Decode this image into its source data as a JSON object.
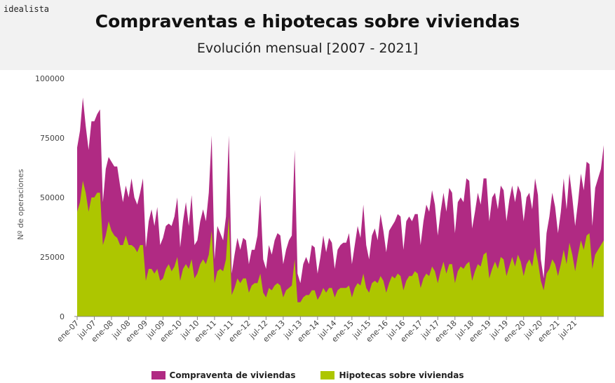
{
  "header": {
    "brand": "idealista",
    "title": "Compraventas e hipotecas sobre viviendas",
    "subtitle": "Evolución mensual [2007 - 2021]"
  },
  "chart_data": {
    "type": "area",
    "stacked": false,
    "ylabel": "Nº de operaciones",
    "ylim": [
      0,
      100000
    ],
    "yticks": [
      0,
      25000,
      50000,
      75000,
      100000
    ],
    "ytick_labels": [
      "0",
      "25000",
      "50000",
      "75000",
      "100000"
    ],
    "x_start": "2007-01",
    "x_end": "2021-11",
    "xtick_labels": [
      "ene-07",
      "jul-07",
      "ene-08",
      "jul-08",
      "ene-09",
      "jul-09",
      "ene-10",
      "jul-10",
      "ene-11",
      "jul-11",
      "ene-12",
      "jul-12",
      "ene-13",
      "jul-13",
      "ene-14",
      "jul-14",
      "ene-15",
      "jul-15",
      "ene-16",
      "jul-16",
      "ene-17",
      "jul-17",
      "ene-18",
      "jul-18",
      "ene-19",
      "jul-19",
      "ene-20",
      "jul-20",
      "ene-21",
      "jul-21"
    ],
    "grid": false,
    "legend_position": "bottom",
    "series": [
      {
        "name": "Compraventa de viviendas",
        "color": "#b02a83",
        "values": [
          71000,
          78000,
          92000,
          80000,
          70000,
          82000,
          82000,
          85000,
          87000,
          48000,
          62000,
          67000,
          65000,
          63000,
          63000,
          55000,
          48000,
          55000,
          50000,
          58000,
          50000,
          47000,
          52000,
          58000,
          29000,
          40000,
          45000,
          38000,
          46000,
          30000,
          33000,
          38000,
          39000,
          38000,
          42000,
          50000,
          29000,
          40000,
          48000,
          38000,
          51000,
          30000,
          32000,
          40000,
          45000,
          40000,
          52000,
          76000,
          24000,
          38000,
          35000,
          32000,
          42000,
          76000,
          18000,
          26000,
          33000,
          28000,
          33000,
          32000,
          22000,
          28000,
          28000,
          34000,
          51000,
          24000,
          20000,
          30000,
          26000,
          32000,
          35000,
          34000,
          22000,
          28000,
          32000,
          34000,
          70000,
          18000,
          14000,
          22000,
          25000,
          22000,
          30000,
          29000,
          18000,
          25000,
          34000,
          27000,
          33000,
          31000,
          20000,
          28000,
          30000,
          31000,
          31000,
          35000,
          22000,
          30000,
          38000,
          33000,
          47000,
          30000,
          24000,
          34000,
          37000,
          32000,
          43000,
          36000,
          27000,
          36000,
          38000,
          40000,
          43000,
          42000,
          28000,
          40000,
          42000,
          40000,
          43000,
          43000,
          30000,
          40000,
          47000,
          44000,
          53000,
          47000,
          34000,
          44000,
          52000,
          44000,
          54000,
          52000,
          35000,
          48000,
          50000,
          48000,
          58000,
          57000,
          37000,
          44000,
          52000,
          47000,
          58000,
          58000,
          40000,
          50000,
          52000,
          45000,
          55000,
          53000,
          40000,
          49000,
          55000,
          48000,
          55000,
          52000,
          40000,
          50000,
          52000,
          45000,
          58000,
          51000,
          24000,
          16000,
          35000,
          42000,
          52000,
          46000,
          35000,
          44000,
          58000,
          45000,
          60000,
          50000,
          38000,
          48000,
          60000,
          53000,
          65000,
          64000,
          38000,
          54000,
          58000,
          62000,
          72000
        ]
      },
      {
        "name": "Hipotecas sobre viviendas",
        "color": "#adc600",
        "values": [
          44000,
          48000,
          57000,
          52000,
          44000,
          50000,
          50000,
          52000,
          52000,
          30000,
          34000,
          40000,
          36000,
          34000,
          33000,
          30000,
          30000,
          34000,
          30000,
          30000,
          29000,
          27000,
          30000,
          30000,
          15000,
          20000,
          20000,
          18000,
          20000,
          15000,
          16000,
          20000,
          22000,
          19000,
          21000,
          25000,
          15000,
          20000,
          22000,
          20000,
          24000,
          16000,
          18000,
          22000,
          24000,
          22000,
          26000,
          36000,
          14000,
          19000,
          20000,
          19000,
          24000,
          42000,
          9000,
          12000,
          16000,
          14000,
          16000,
          16000,
          10000,
          13000,
          14000,
          14000,
          18000,
          10000,
          8000,
          12000,
          11000,
          13000,
          14000,
          13000,
          8000,
          11000,
          12000,
          13000,
          24000,
          6000,
          6000,
          8000,
          9000,
          9000,
          11000,
          11000,
          7000,
          9000,
          12000,
          10000,
          12000,
          12000,
          8000,
          11000,
          12000,
          12000,
          12000,
          13000,
          8000,
          12000,
          14000,
          13000,
          18000,
          12000,
          10000,
          14000,
          15000,
          14000,
          17000,
          15000,
          10000,
          14000,
          17000,
          16000,
          18000,
          17000,
          11000,
          15000,
          17000,
          17000,
          19000,
          18000,
          12000,
          16000,
          18000,
          17000,
          21000,
          19000,
          14000,
          19000,
          23000,
          18000,
          22000,
          22000,
          14000,
          19000,
          21000,
          20000,
          22000,
          23000,
          15000,
          19000,
          22000,
          21000,
          26000,
          27000,
          16000,
          20000,
          23000,
          20000,
          25000,
          24000,
          17000,
          21000,
          25000,
          21000,
          26000,
          23000,
          17000,
          22000,
          24000,
          21000,
          29000,
          23000,
          15000,
          11000,
          18000,
          20000,
          24000,
          22000,
          17000,
          22000,
          28000,
          22000,
          31000,
          26000,
          19000,
          26000,
          32000,
          28000,
          34000,
          35000,
          20000,
          26000,
          28000,
          30000,
          32000
        ]
      }
    ]
  }
}
